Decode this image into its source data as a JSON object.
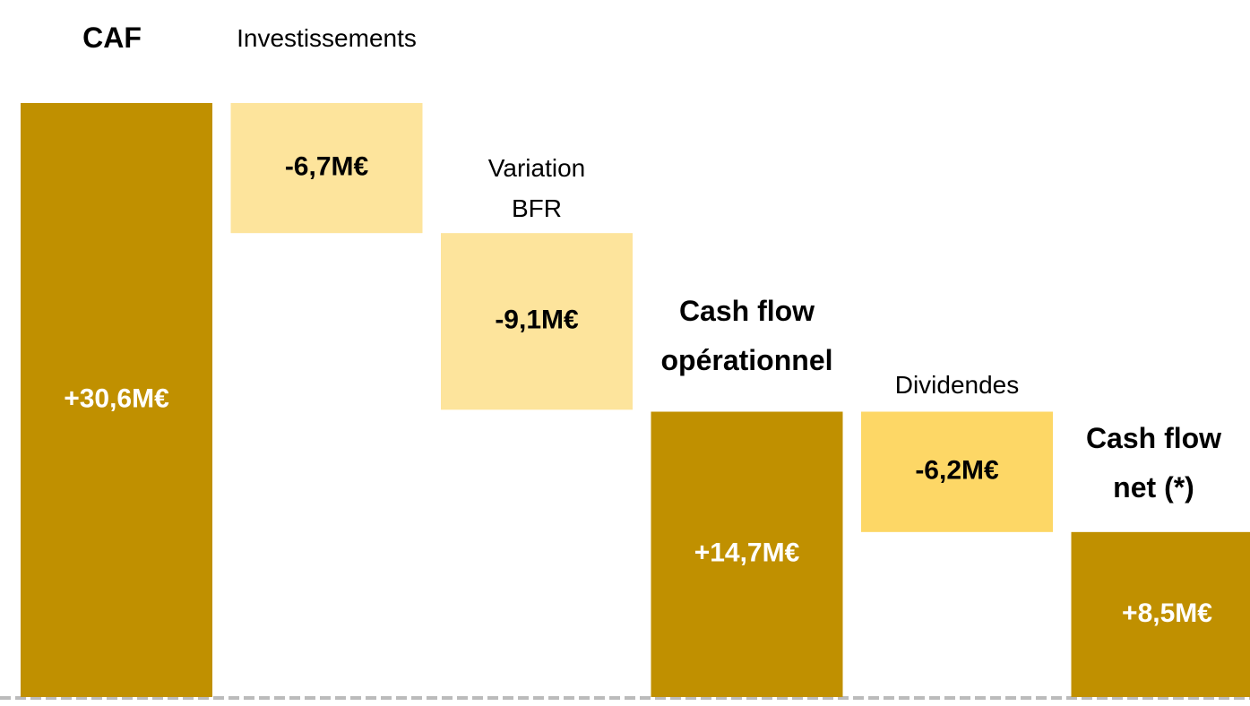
{
  "chart_data": {
    "type": "waterfall",
    "categories": [
      "CAF",
      "Investissements",
      "Variation\nBFR",
      "Cash flow\nopérationnel",
      "Dividendes",
      "Cash flow\nnet (*)"
    ],
    "values": [
      30.6,
      -6.7,
      -9.1,
      14.7,
      -6.2,
      8.5
    ],
    "value_labels": [
      "+30,6M€",
      "-6,7M€",
      "-9,1M€",
      "+14,7M€",
      "-6,2M€",
      "+8,5M€"
    ],
    "colors": [
      "#c09000",
      "#fde49c",
      "#fde49c",
      "#c09000",
      "#fdd766",
      "#c09000"
    ]
  }
}
